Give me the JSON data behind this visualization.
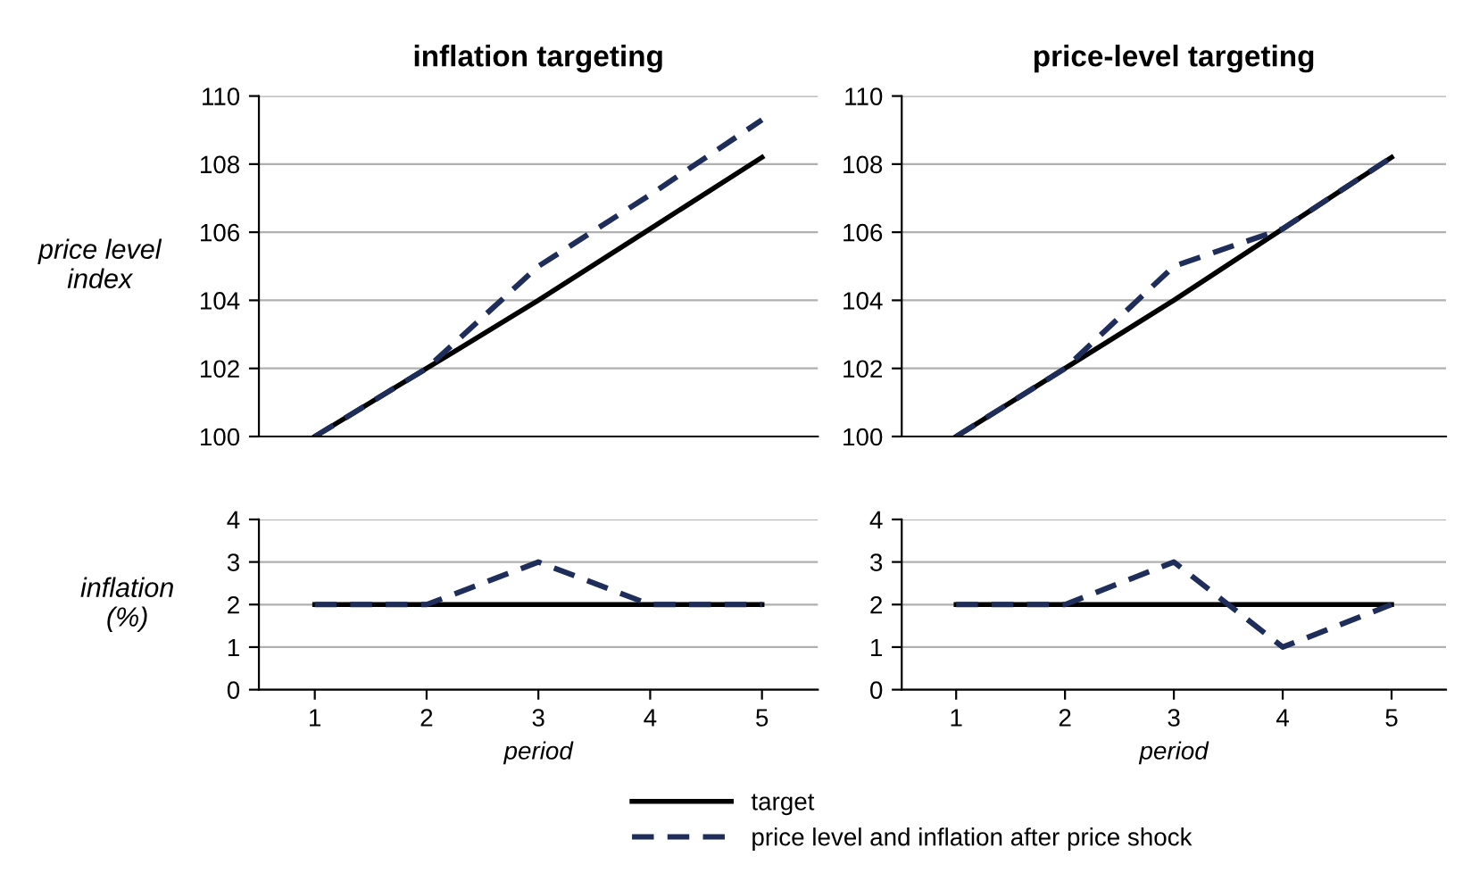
{
  "chart_data": [
    {
      "type": "line",
      "title": "inflation targeting",
      "ylabel": "price level\nindex",
      "x": [
        1,
        2,
        3,
        4,
        5
      ],
      "xlim": [
        0.5,
        5.5
      ],
      "ylim": [
        100,
        110
      ],
      "yticks": [
        100,
        102,
        104,
        106,
        108,
        110
      ],
      "grid": "y",
      "tick_labels": "y",
      "marker": "none",
      "legend": "bottom",
      "series": [
        {
          "name": "target",
          "color": "#000000",
          "line_style": "solid",
          "values": [
            100,
            102,
            104,
            106.1,
            108.2
          ]
        },
        {
          "name": "price level and inflation after price shock",
          "color": "#1f2d5a",
          "line_style": "dashed",
          "values": [
            100,
            102,
            105,
            107.1,
            109.3
          ]
        }
      ]
    },
    {
      "type": "line",
      "title": "price-level targeting",
      "x": [
        1,
        2,
        3,
        4,
        5
      ],
      "xlim": [
        0.5,
        5.5
      ],
      "ylim": [
        100,
        110
      ],
      "yticks": [
        100,
        102,
        104,
        106,
        108,
        110
      ],
      "grid": "y",
      "tick_labels": "y",
      "marker": "none",
      "series": [
        {
          "color": "#000000",
          "line_style": "solid",
          "values": [
            100,
            102,
            104,
            106.1,
            108.2
          ]
        },
        {
          "color": "#1f2d5a",
          "line_style": "dashed",
          "values": [
            100,
            102,
            105,
            106.1,
            108.2
          ]
        }
      ]
    },
    {
      "type": "line",
      "ylabel": "inflation\n(%)",
      "xlabel": "period",
      "x": [
        1,
        2,
        3,
        4,
        5
      ],
      "xlim": [
        0.5,
        5.5
      ],
      "xticks": [
        1,
        2,
        3,
        4,
        5
      ],
      "ylim": [
        0,
        4
      ],
      "yticks": [
        0,
        1,
        2,
        3,
        4
      ],
      "grid": "y",
      "marker": "none",
      "series": [
        {
          "color": "#000000",
          "line_style": "solid",
          "values": [
            2,
            2,
            2,
            2,
            2
          ]
        },
        {
          "color": "#1f2d5a",
          "line_style": "dashed",
          "values": [
            2,
            2,
            3,
            2,
            2
          ]
        }
      ]
    },
    {
      "type": "line",
      "xlabel": "period",
      "x": [
        1,
        2,
        3,
        4,
        5
      ],
      "xlim": [
        0.5,
        5.5
      ],
      "xticks": [
        1,
        2,
        3,
        4,
        5
      ],
      "ylim": [
        0,
        4
      ],
      "yticks": [
        0,
        1,
        2,
        3,
        4
      ],
      "grid": "y",
      "marker": "none",
      "series": [
        {
          "color": "#000000",
          "line_style": "solid",
          "values": [
            2,
            2,
            2,
            2,
            2
          ]
        },
        {
          "color": "#1f2d5a",
          "line_style": "dashed",
          "values": [
            2,
            2,
            3,
            1,
            2
          ]
        }
      ]
    }
  ]
}
